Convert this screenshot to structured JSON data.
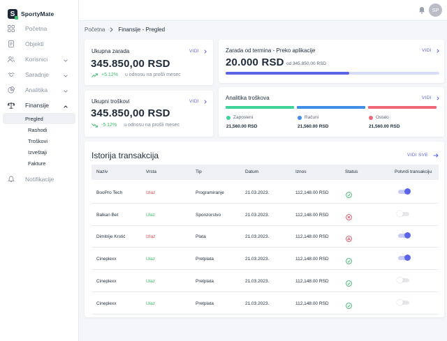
{
  "app": {
    "name": "SportyMate",
    "logo_letter": "S"
  },
  "sidebar": {
    "items": [
      {
        "label": "Početna",
        "icon": "grid-icon",
        "has_chevron": false
      },
      {
        "label": "Objekti",
        "icon": "document-icon",
        "has_chevron": false
      },
      {
        "label": "Korisnici",
        "icon": "users-icon",
        "has_chevron": true
      },
      {
        "label": "Saradnje",
        "icon": "handshake-icon",
        "has_chevron": true
      },
      {
        "label": "Analitika",
        "icon": "pie-chart-icon",
        "has_chevron": true
      },
      {
        "label": "Finansije",
        "icon": "scale-icon",
        "has_chevron": true,
        "expanded": true
      },
      {
        "label": "Notifikacije",
        "icon": "bell-icon",
        "has_chevron": false
      }
    ],
    "finansije_sub": [
      "Pregled",
      "Rashodi",
      "Troškovi",
      "Izveštaji",
      "Fakture"
    ],
    "selected_sub": "Pregled"
  },
  "topbar": {
    "avatar_initials": "SP"
  },
  "breadcrumb": {
    "root": "Početna",
    "current": "Finansije - Pregled"
  },
  "cards": {
    "zarada": {
      "label": "Ukupna zarada",
      "value": "345.850,00 RSD",
      "delta": "+5.12%",
      "note": "u odnosu na prošli mesec",
      "link": "VIDI"
    },
    "troskovi": {
      "label": "Ukupni troškovi",
      "value": "345.850,00 RSD",
      "delta": "-5.12%",
      "note": "u odnosu na prošli mesec",
      "link": "VIDI"
    },
    "termini": {
      "label": "Zarada od termina - Preko aplikacije",
      "value": "20.000 RSD",
      "sub": "od 345.850,00 RSD",
      "link": "VIDI",
      "progress": 0.58
    },
    "analitika": {
      "label": "Analitika troškova",
      "link": "VIDI",
      "categories": [
        {
          "name": "Zaposleni",
          "value": "21,560.00 RSD",
          "color": "#3fd49a"
        },
        {
          "name": "Računi",
          "value": "21,560.00 RSD",
          "color": "#3f8ee8"
        },
        {
          "name": "Ostalo",
          "value": "21,560.00 RSD",
          "color": "#f06878"
        }
      ]
    }
  },
  "transactions": {
    "title": "Istorija transakcija",
    "link": "VIDI SVE",
    "columns": [
      "Naziv",
      "Vrsta",
      "Tip",
      "Datum",
      "Iznos",
      "Status",
      "Potvrdi transakciju"
    ],
    "rows": [
      {
        "naziv": "BooPro Tech",
        "vrsta": "Izlaz",
        "tip": "Programiranje",
        "datum": "21.03.2023.",
        "iznos": "112,148.00 RSD",
        "status": "approved",
        "confirmed": true
      },
      {
        "naziv": "Balkan Bet",
        "vrsta": "Ulaz",
        "tip": "Sponzorstvo",
        "datum": "21.03.2023.",
        "iznos": "112,148.00 RSD",
        "status": "rejected",
        "confirmed": false
      },
      {
        "naziv": "Dimitrije Krstić",
        "vrsta": "Izlaz",
        "tip": "Plata",
        "datum": "21.03.2023.",
        "iznos": "112,148.00 RSD",
        "status": "warning",
        "confirmed": true
      },
      {
        "naziv": "Cineplexx",
        "vrsta": "Ulaz",
        "tip": "Pretplata",
        "datum": "21.03.2023.",
        "iznos": "112,148.00 RSD",
        "status": "approved",
        "confirmed": true
      },
      {
        "naziv": "Cineplexx",
        "vrsta": "Ulaz",
        "tip": "Pretplata",
        "datum": "21.03.2023.",
        "iznos": "112,148.00 RSD",
        "status": "approved",
        "confirmed": false
      },
      {
        "naziv": "Cineplexx",
        "vrsta": "Ulaz",
        "tip": "Pretplata",
        "datum": "21.03.2023.",
        "iznos": "112,148.00 RSD",
        "status": "approved",
        "confirmed": false
      }
    ]
  },
  "colors": {
    "accent": "#5b63e6",
    "positive": "#3cb86a",
    "negative": "#e04b5a"
  }
}
